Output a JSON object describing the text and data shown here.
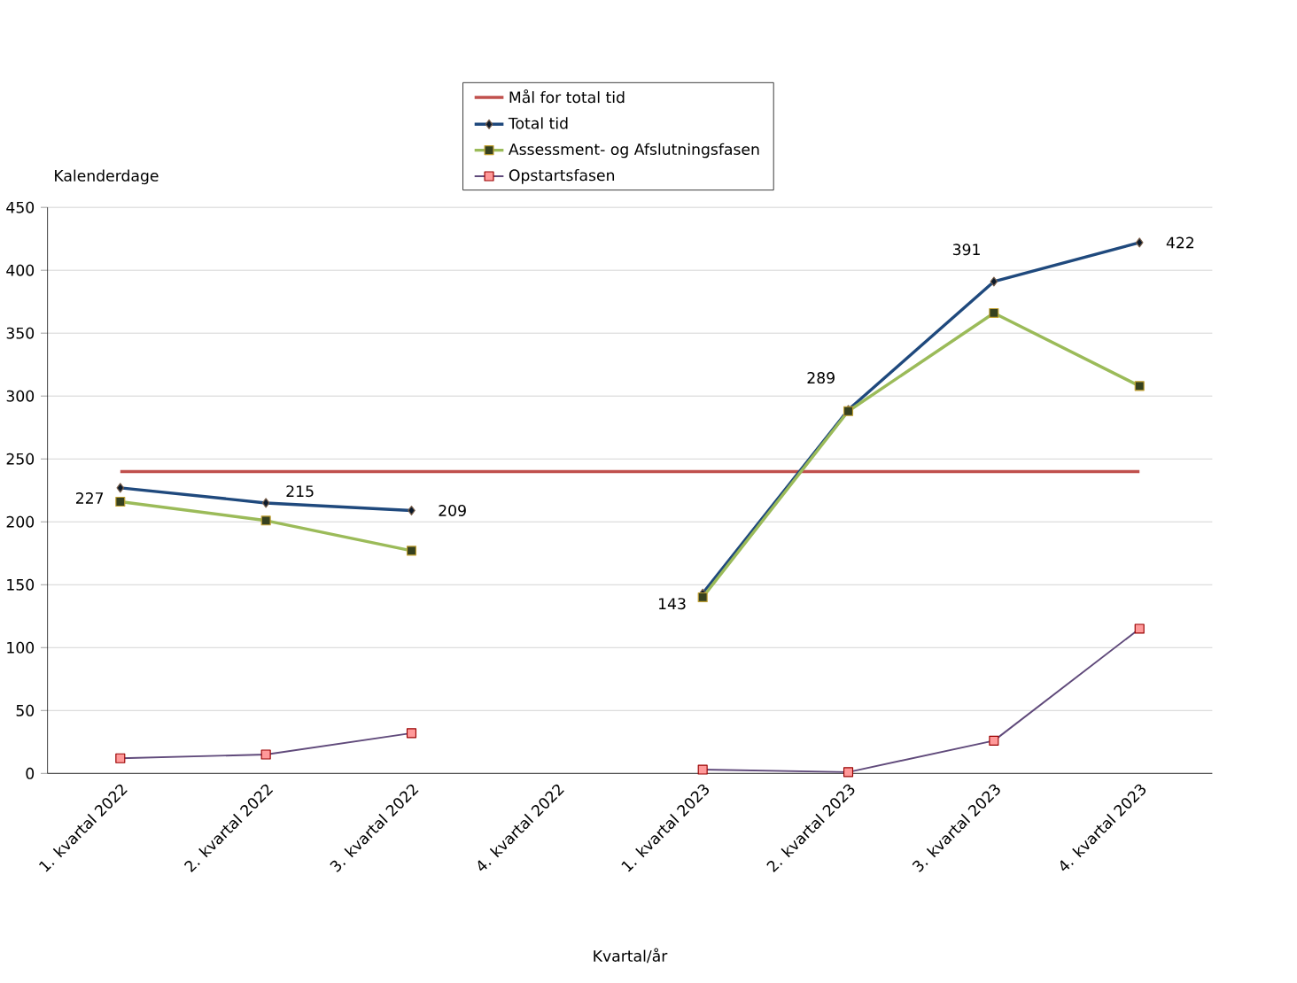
{
  "chart_data": {
    "type": "line",
    "categories": [
      "1. kvartal 2022",
      "2. kvartal 2022",
      "3. kvartal 2022",
      "4. kvartal 2022",
      "1. kvartal 2023",
      "2. kvartal 2023",
      "3. kvartal 2023",
      "4. kvartal 2023"
    ],
    "xlabel": "Kvartal/år",
    "ylabel": "Kalenderdage",
    "ylim": [
      0,
      450
    ],
    "yticks": [
      0,
      50,
      100,
      150,
      200,
      250,
      300,
      350,
      400,
      450
    ],
    "grid": "y",
    "legend": "top",
    "series": [
      {
        "name": "Mål for total tid",
        "color": "#c0504d",
        "marker": "none",
        "values": [
          240,
          240,
          240,
          240,
          240,
          240,
          240,
          240
        ]
      },
      {
        "name": "Total tid",
        "color": "#1f497d",
        "marker": "diamond",
        "values": [
          227,
          215,
          209,
          null,
          143,
          289,
          391,
          422
        ],
        "value_labels": [
          "227",
          "215",
          "209",
          null,
          "143",
          "289",
          "391",
          "422"
        ]
      },
      {
        "name": "Assessment- og Afslutningsfasen",
        "color": "#9bbb59",
        "marker": "square",
        "values": [
          216,
          201,
          177,
          null,
          140,
          288,
          366,
          308
        ]
      },
      {
        "name": "Opstartsfasen",
        "color": "#604a7b",
        "marker": "square",
        "values": [
          12,
          15,
          32,
          null,
          3,
          1,
          26,
          115
        ]
      }
    ]
  }
}
